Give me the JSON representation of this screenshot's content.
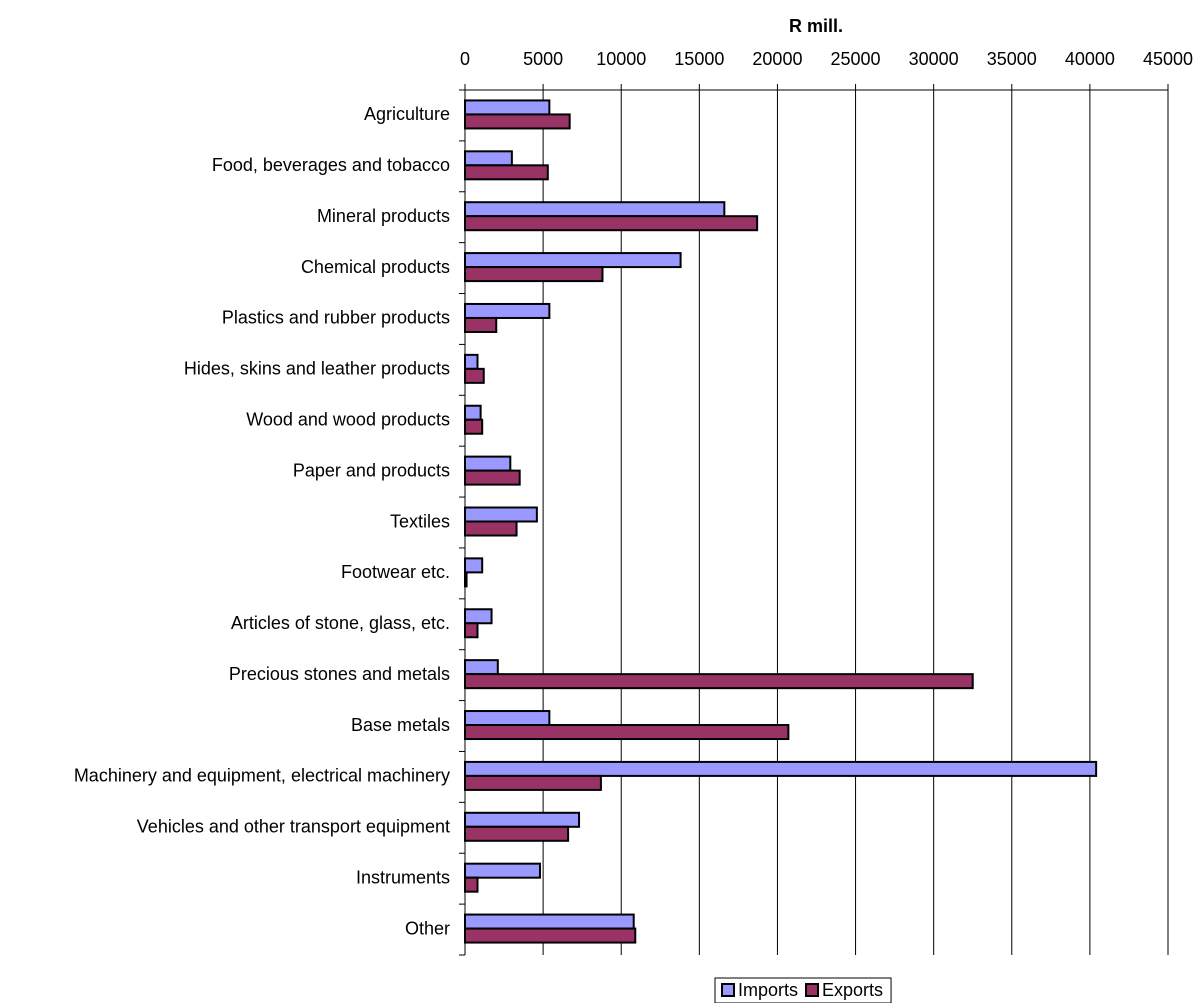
{
  "chart_data": {
    "type": "bar",
    "orientation": "horizontal",
    "x_label": "R mill.",
    "categories": [
      "Agriculture",
      "Food, beverages and tobacco",
      "Mineral products",
      "Chemical products",
      "Plastics and rubber products",
      "Hides, skins and leather products",
      "Wood and wood products",
      "Paper and products",
      "Textiles",
      "Footwear etc.",
      "Articles of stone, glass, etc.",
      "Precious stones and metals",
      "Base metals",
      "Machinery and equipment, electrical machinery",
      "Vehicles and other transport equipment",
      "Instruments",
      "Other"
    ],
    "series": [
      {
        "name": "Imports",
        "color": "#9999ff",
        "values": [
          5400,
          3000,
          16600,
          13800,
          5400,
          800,
          1000,
          2900,
          4600,
          1100,
          1700,
          2100,
          5400,
          40400,
          7300,
          4800,
          10800
        ]
      },
      {
        "name": "Exports",
        "color": "#993366",
        "values": [
          6700,
          5300,
          18700,
          8800,
          2000,
          1200,
          1100,
          3500,
          3300,
          100,
          800,
          32500,
          20700,
          8700,
          6600,
          800,
          10900
        ]
      }
    ],
    "xlim": [
      0,
      45000
    ],
    "xticks": [
      0,
      5000,
      10000,
      15000,
      20000,
      25000,
      30000,
      35000,
      40000,
      45000
    ],
    "grid": true,
    "legend": "bottom"
  }
}
